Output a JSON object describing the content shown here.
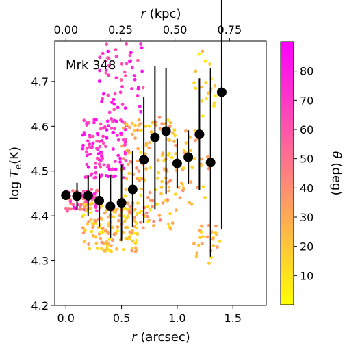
{
  "chart_data": {
    "type": "scatter",
    "annotation": "Mrk 348",
    "xlabel": {
      "main": "r",
      "unit": "(arcsec)"
    },
    "top_xlabel": {
      "main": "r",
      "unit": "(kpc)"
    },
    "ylabel": {
      "prefix": "log ",
      "T": "T",
      "sub": "e",
      "unit": "(K)"
    },
    "colorbar_label": {
      "theta": "θ",
      "unit": "(deg)"
    },
    "xlim": [
      -0.1,
      1.8
    ],
    "ylim": [
      4.2,
      4.79
    ],
    "xticks": [
      "0.0",
      "0.5",
      "1.0",
      "1.5"
    ],
    "xtick_values": [
      0.0,
      0.5,
      1.0,
      1.5
    ],
    "yticks": [
      "4.2",
      "4.3",
      "4.4",
      "4.5",
      "4.6",
      "4.7"
    ],
    "ytick_values": [
      4.2,
      4.3,
      4.4,
      4.5,
      4.6,
      4.7
    ],
    "top_xticks": [
      "0.00",
      "0.25",
      "0.50",
      "0.75"
    ],
    "top_xtick_arcsec": [
      0.0,
      0.49,
      0.98,
      1.47
    ],
    "colorbar": {
      "range": [
        0,
        90
      ],
      "ticks": [
        "10",
        "20",
        "30",
        "40",
        "50",
        "60",
        "70",
        "80"
      ],
      "tick_values": [
        10,
        20,
        30,
        40,
        50,
        60,
        70,
        80
      ],
      "color_low": "#ffff00",
      "color_high": "#ff00ff"
    },
    "binned_series": {
      "color": "#000000",
      "x": [
        0.0,
        0.1,
        0.2,
        0.3,
        0.4,
        0.5,
        0.6,
        0.7,
        0.8,
        0.9,
        1.0,
        1.1,
        1.2,
        1.3,
        1.4
      ],
      "y": [
        4.446,
        4.444,
        4.445,
        4.434,
        4.421,
        4.429,
        4.459,
        4.525,
        4.575,
        4.589,
        4.517,
        4.531,
        4.582,
        4.519,
        4.676
      ],
      "err": [
        0.0,
        0.03,
        0.045,
        0.06,
        0.07,
        0.085,
        0.085,
        0.14,
        0.16,
        0.14,
        0.055,
        0.06,
        0.125,
        0.21,
        0.305
      ]
    },
    "scatter_clusters": [
      {
        "x_range": [
          0.0,
          0.3
        ],
        "y_range": [
          4.41,
          4.46
        ],
        "theta_range": [
          35,
          85
        ],
        "n": 70
      },
      {
        "x_range": [
          0.15,
          0.55
        ],
        "y_range": [
          4.48,
          4.62
        ],
        "theta_range": [
          60,
          90
        ],
        "n": 120
      },
      {
        "x_range": [
          0.3,
          0.7
        ],
        "y_range": [
          4.63,
          4.79
        ],
        "theta_range": [
          55,
          90
        ],
        "n": 55
      },
      {
        "x_range": [
          0.15,
          0.65
        ],
        "y_range": [
          4.32,
          4.43
        ],
        "theta_range": [
          5,
          40
        ],
        "n": 150
      },
      {
        "x_range": [
          0.5,
          1.0
        ],
        "y_range": [
          4.37,
          4.62
        ],
        "theta_range": [
          8,
          45
        ],
        "n": 140
      },
      {
        "x_range": [
          0.9,
          1.3
        ],
        "y_range": [
          4.42,
          4.6
        ],
        "theta_range": [
          10,
          40
        ],
        "n": 45
      },
      {
        "x_range": [
          1.15,
          1.4
        ],
        "y_range": [
          4.29,
          4.38
        ],
        "theta_range": [
          10,
          35
        ],
        "n": 25
      },
      {
        "x_range": [
          1.15,
          1.35
        ],
        "y_range": [
          4.62,
          4.77
        ],
        "theta_range": [
          5,
          30
        ],
        "n": 20
      }
    ]
  }
}
